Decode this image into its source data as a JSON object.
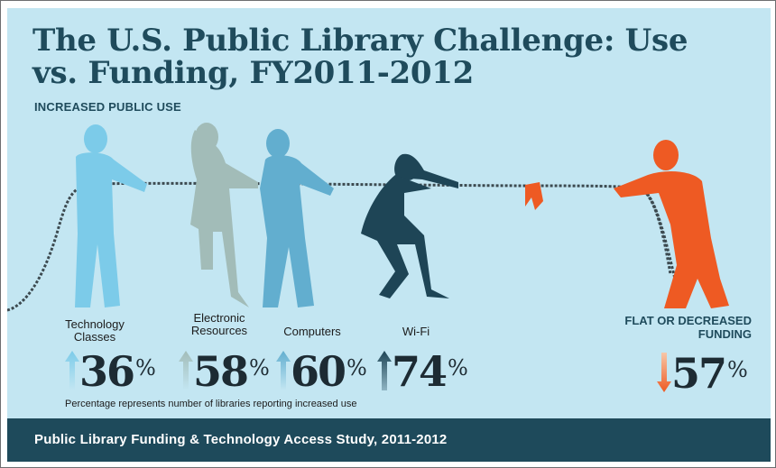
{
  "title": "The U.S. Public Library Challenge: Use vs. Funding, FY2011-2012",
  "subtitle": "INCREASED PUBLIC USE",
  "increased_use": [
    {
      "label_line1": "Technology",
      "label_line2": "Classes",
      "value": "36",
      "unit": "%",
      "color": "#7ccbe9"
    },
    {
      "label_line1": "Electronic",
      "label_line2": "Resources",
      "value": "58",
      "unit": "%",
      "color": "#a2bcb8"
    },
    {
      "label_line1": "Computers",
      "label_line2": "",
      "value": "60",
      "unit": "%",
      "color": "#62aecf"
    },
    {
      "label_line1": "Wi-Fi",
      "label_line2": "",
      "value": "74",
      "unit": "%",
      "color": "#1e4556"
    }
  ],
  "funding": {
    "label": "FLAT OR DECREASED FUNDING",
    "value": "57",
    "unit": "%",
    "color": "#ee5a23"
  },
  "note": "Percentage represents number of libraries reporting increased use",
  "footer": "Public Library Funding & Technology Access Study, 2011-2012",
  "icons": [
    "up-arrow-icon",
    "down-arrow-icon",
    "tug-of-war-figure-icon",
    "rope-icon",
    "flag-icon"
  ]
}
